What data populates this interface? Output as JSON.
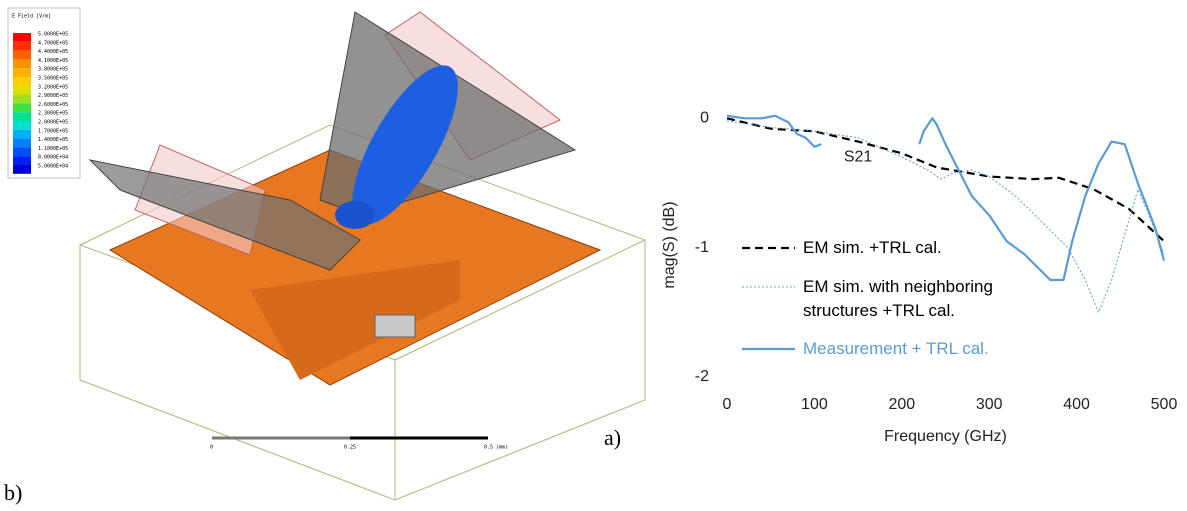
{
  "figure": {
    "colorbar": {
      "title": "E Field [V/m]",
      "labels": [
        "5.0000E+05",
        "4.7000E+05",
        "4.4000E+05",
        "4.1000E+05",
        "3.8000E+05",
        "3.5000E+05",
        "3.2000E+05",
        "2.9000E+05",
        "2.6000E+05",
        "2.3000E+05",
        "2.0000E+05",
        "1.7000E+05",
        "1.4000E+05",
        "1.1000E+05",
        "8.0000E+04",
        "5.0000E+04"
      ]
    },
    "scale_bar": [
      "0",
      "0.25",
      "0.5 (mm)"
    ],
    "panel_a": "a)",
    "panel_b": "b)"
  },
  "chart_data": {
    "type": "line",
    "xlabel": "Frequency (GHz)",
    "ylabel": "mag(S) (dB)",
    "xlim": [
      0,
      500
    ],
    "xticks": [
      0,
      100,
      200,
      300,
      400,
      500
    ],
    "ylim": [
      -2,
      0.08
    ],
    "yticks": [
      0,
      -1,
      -2
    ],
    "annotation": {
      "text": "S21",
      "x": 150,
      "y": -0.3,
      "color": "#5b9bd5"
    },
    "series": [
      {
        "name": "EM sim. +TRL cal.",
        "color": "#000000",
        "style": "dashed",
        "width": 2.2,
        "x": [
          0,
          50,
          100,
          150,
          200,
          240,
          300,
          350,
          380,
          420,
          460,
          500
        ],
        "values": [
          0,
          -0.08,
          -0.1,
          -0.18,
          -0.27,
          -0.38,
          -0.45,
          -0.47,
          -0.46,
          -0.55,
          -0.7,
          -0.95
        ]
      },
      {
        "name": "EM sim. with neighboring structures  +TRL cal.",
        "color": "#5b9bd5",
        "style": "dotted",
        "width": 1,
        "x": [
          0,
          50,
          100,
          150,
          200,
          230,
          245,
          260,
          280,
          300,
          330,
          360,
          390,
          410,
          425,
          440,
          455,
          470,
          480,
          500
        ],
        "values": [
          -0.02,
          -0.07,
          -0.1,
          -0.15,
          -0.3,
          -0.4,
          -0.47,
          -0.42,
          -0.4,
          -0.45,
          -0.6,
          -0.8,
          -1.0,
          -1.25,
          -1.5,
          -1.25,
          -0.9,
          -0.55,
          -0.7,
          -1.05
        ]
      },
      {
        "name": "Measurement + TRL cal.",
        "color": "#5b9bd5",
        "style": "solid",
        "width": 2.2,
        "x": [
          0,
          20,
          40,
          55,
          70,
          80,
          90,
          100,
          108,
          160,
          220,
          225,
          235,
          240,
          250,
          265,
          280,
          300,
          320,
          340,
          355,
          370,
          385,
          395,
          410,
          425,
          440,
          455,
          470,
          490,
          500
        ],
        "values": [
          0.02,
          0,
          0,
          0.02,
          -0.03,
          -0.12,
          -0.15,
          -0.22,
          -0.2,
          null,
          -0.2,
          -0.1,
          0,
          -0.05,
          -0.2,
          -0.4,
          -0.6,
          -0.75,
          -0.95,
          -1.05,
          -1.15,
          -1.25,
          -1.25,
          -0.95,
          -0.6,
          -0.35,
          -0.18,
          -0.2,
          -0.5,
          -0.85,
          -1.1
        ]
      }
    ]
  }
}
